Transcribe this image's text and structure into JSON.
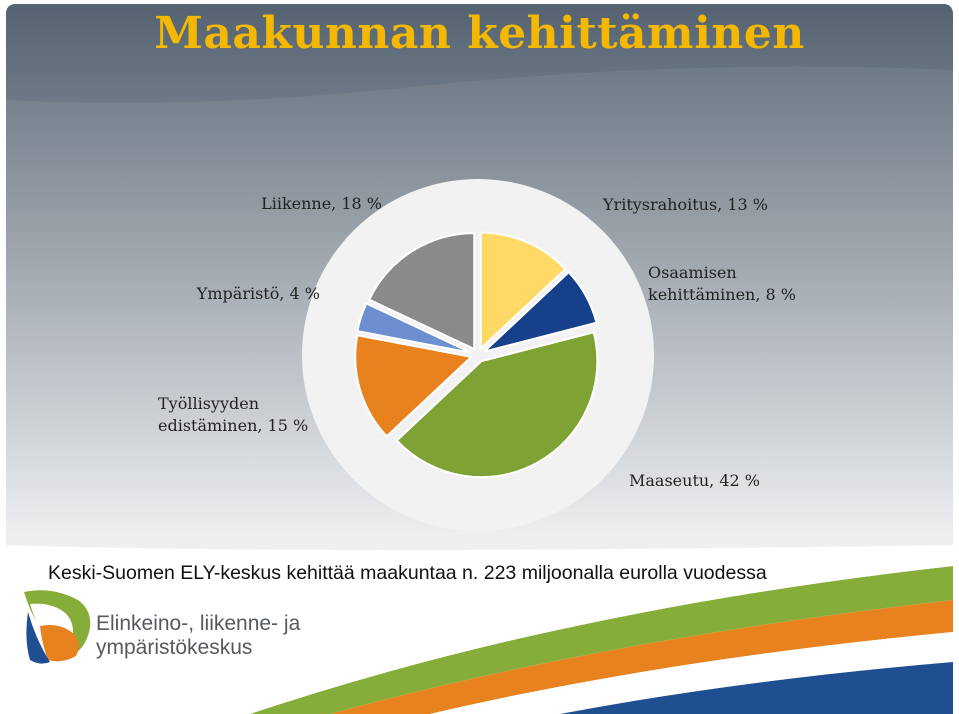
{
  "slide": {
    "title": "Maakunnan kehittäminen",
    "caption": "Keski-Suomen ELY-keskus kehittää maakuntaa n. 223 miljoonalla eurolla vuodessa",
    "logo": {
      "line1": "Elinkeino-, liikenne- ja",
      "line2": "ympäristökeskus"
    }
  },
  "chart_data": {
    "type": "pie",
    "title": "",
    "start": "top, clockwise",
    "slices": [
      {
        "label_lines": [
          "Yritysrahoitus, 13 %"
        ],
        "value": 13,
        "color": "#ffd966"
      },
      {
        "label_lines": [
          "Osaamisen",
          "kehittäminen, 8 %"
        ],
        "value": 8,
        "color": "#17408b"
      },
      {
        "label_lines": [
          "Maaseutu, 42 %"
        ],
        "value": 42,
        "color": "#7ea233"
      },
      {
        "label_lines": [
          "Työllisyyden",
          "edistäminen, 15 %"
        ],
        "value": 15,
        "color": "#e8821e"
      },
      {
        "label_lines": [
          "Ympäristö, 4 %"
        ],
        "value": 4,
        "color": "#6c8fd1"
      },
      {
        "label_lines": [
          "Liikenne, 18 %"
        ],
        "value": 18,
        "color": "#8a8a8a"
      }
    ]
  }
}
